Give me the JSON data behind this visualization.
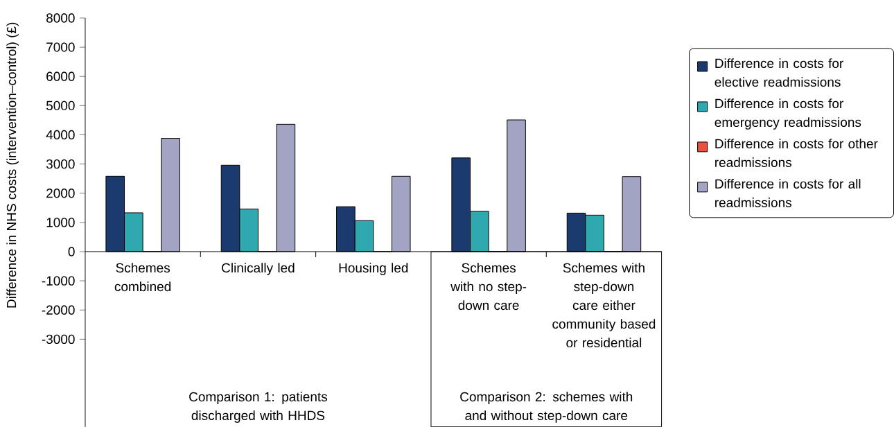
{
  "chart_data": {
    "type": "bar",
    "ylabel": "Difference in NHS costs (intervention–control) (£)",
    "categories": [
      "Schemes combined",
      "Clinically led",
      "Housing led",
      "Schemes with no step-down care",
      "Schemes with step-down care either community based or residential"
    ],
    "series": [
      {
        "name": "Difference in costs for elective readmissions",
        "color": "#1b3b6f",
        "values": [
          2580,
          2960,
          1540,
          3210,
          1320
        ]
      },
      {
        "name": "Difference in costs for emergency readmissions",
        "color": "#2fa8b0",
        "values": [
          1330,
          1460,
          1060,
          1380,
          1250
        ]
      },
      {
        "name": "Difference in costs for other readmissions",
        "color": "#e8523f",
        "values": [
          0,
          0,
          0,
          0,
          0
        ]
      },
      {
        "name": "Difference in costs for all readmissions",
        "color": "#a3a3c4",
        "values": [
          3880,
          4360,
          2580,
          4510,
          2570
        ]
      }
    ],
    "ylim": [
      -6000,
      8000
    ],
    "yticks": [
      -3000,
      -2000,
      -1000,
      0,
      1000,
      2000,
      3000,
      4000,
      5000,
      6000,
      7000,
      8000
    ],
    "annotations": [
      "Comparison 1: patients discharged with HHDS",
      "Comparison 2: schemes with and without step-down care"
    ],
    "legend": "right",
    "grid": false
  }
}
